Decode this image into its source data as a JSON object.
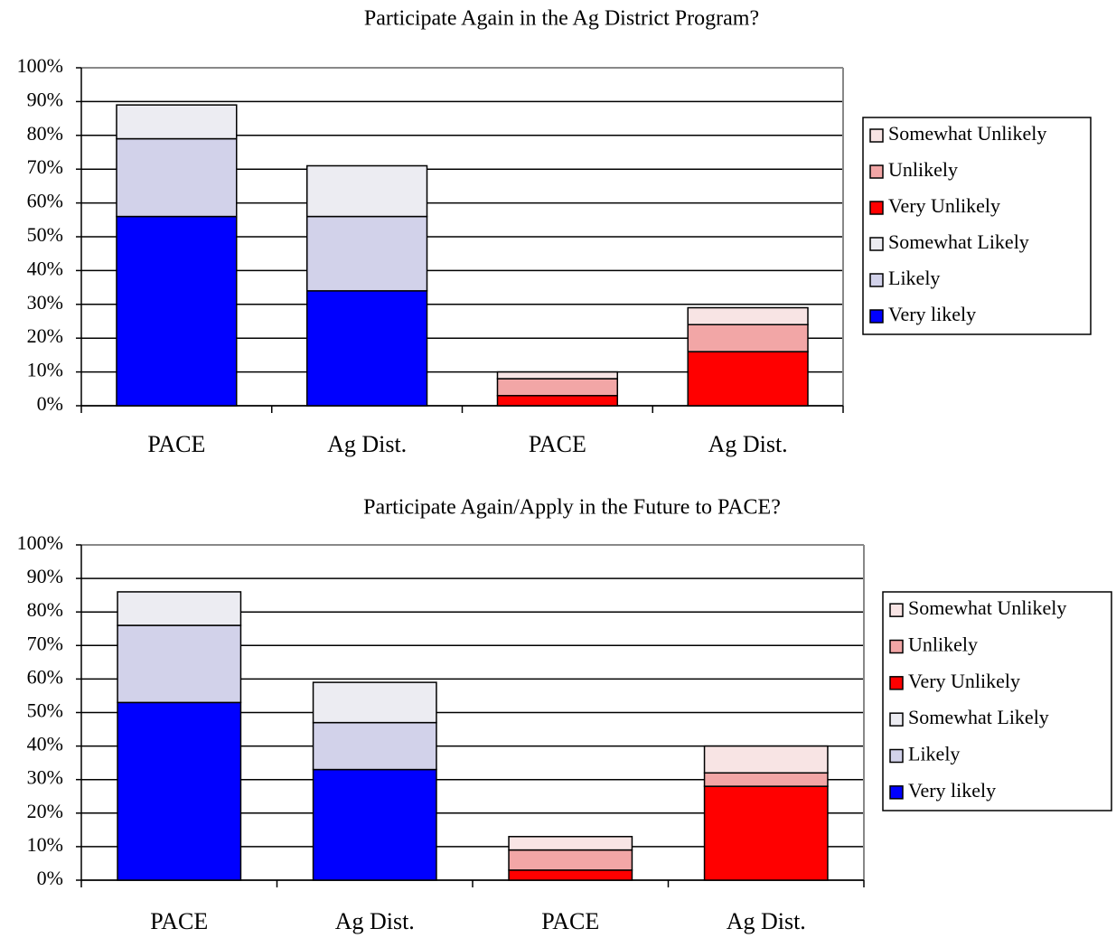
{
  "chart_data": [
    {
      "type": "bar",
      "stacked": true,
      "title": "Participate Again in the Ag District Program?",
      "categories": [
        "PACE",
        "Ag Dist.",
        "PACE",
        "Ag Dist."
      ],
      "series": [
        {
          "name": "Very likely",
          "color": "#0000ff",
          "values": [
            56,
            34,
            null,
            null
          ]
        },
        {
          "name": "Likely",
          "color": "#d2d2ea",
          "values": [
            23,
            22,
            null,
            null
          ]
        },
        {
          "name": "Somewhat Likely",
          "color": "#ececf2",
          "values": [
            10,
            15,
            null,
            null
          ]
        },
        {
          "name": "Very Unlikely",
          "color": "#ff0000",
          "values": [
            null,
            null,
            3,
            16
          ]
        },
        {
          "name": "Unlikely",
          "color": "#f2a6a6",
          "values": [
            null,
            null,
            5,
            8
          ]
        },
        {
          "name": "Somewhat Unlikely",
          "color": "#f8e4e4",
          "values": [
            null,
            null,
            2,
            5
          ]
        }
      ],
      "ylim": [
        0,
        100
      ],
      "yticks": [
        {
          "value": 0,
          "label": "0%"
        },
        {
          "value": 10,
          "label": "10%"
        },
        {
          "value": 20,
          "label": "20%"
        },
        {
          "value": 30,
          "label": "30%"
        },
        {
          "value": 40,
          "label": "40%"
        },
        {
          "value": 50,
          "label": "50%"
        },
        {
          "value": 60,
          "label": "60%"
        },
        {
          "value": 70,
          "label": "70%"
        },
        {
          "value": 80,
          "label": "80%"
        },
        {
          "value": 90,
          "label": "90%"
        },
        {
          "value": 100,
          "label": "100%"
        }
      ],
      "grid": true,
      "legend": "right"
    },
    {
      "type": "bar",
      "stacked": true,
      "title": "Participate Again/Apply in the Future to PACE?",
      "categories": [
        "PACE",
        "Ag Dist.",
        "PACE",
        "Ag Dist."
      ],
      "series": [
        {
          "name": "Very likely",
          "color": "#0000ff",
          "values": [
            53,
            33,
            null,
            null
          ]
        },
        {
          "name": "Likely",
          "color": "#d2d2ea",
          "values": [
            23,
            14,
            null,
            null
          ]
        },
        {
          "name": "Somewhat Likely",
          "color": "#ececf2",
          "values": [
            10,
            12,
            null,
            null
          ]
        },
        {
          "name": "Very Unlikely",
          "color": "#ff0000",
          "values": [
            null,
            null,
            3,
            28
          ]
        },
        {
          "name": "Unlikely",
          "color": "#f2a6a6",
          "values": [
            null,
            null,
            6,
            4
          ]
        },
        {
          "name": "Somewhat Unlikely",
          "color": "#f8e4e4",
          "values": [
            null,
            null,
            4,
            8
          ]
        }
      ],
      "ylim": [
        0,
        100
      ],
      "yticks": [
        {
          "value": 0,
          "label": "0%"
        },
        {
          "value": 10,
          "label": "10%"
        },
        {
          "value": 20,
          "label": "20%"
        },
        {
          "value": 30,
          "label": "30%"
        },
        {
          "value": 40,
          "label": "40%"
        },
        {
          "value": 50,
          "label": "50%"
        },
        {
          "value": 60,
          "label": "60%"
        },
        {
          "value": 70,
          "label": "70%"
        },
        {
          "value": 80,
          "label": "80%"
        },
        {
          "value": 90,
          "label": "90%"
        },
        {
          "value": 100,
          "label": "100%"
        }
      ],
      "grid": true,
      "legend": "right"
    }
  ]
}
